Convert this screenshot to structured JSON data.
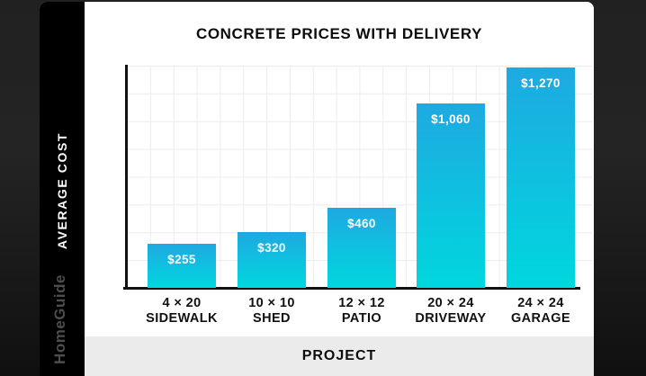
{
  "chart": {
    "title": "CONCRETE PRICES WITH DELIVERY",
    "y_axis_title": "AVERAGE COST",
    "x_axis_title": "PROJECT",
    "brand": "HomeGuide"
  },
  "colors": {
    "bar_gradient_top": "#1ea9e1",
    "bar_gradient_bottom": "#00d7de",
    "card_background": "#ffffff",
    "side_strip": "#000000",
    "bottom_strip": "#ebebeb",
    "grid_line": "#ececec",
    "axis": "#111111",
    "page_background": "#1c1c1c"
  },
  "chart_data": {
    "type": "bar",
    "title": "CONCRETE PRICES WITH DELIVERY",
    "xlabel": "PROJECT",
    "ylabel": "AVERAGE COST",
    "categories": [
      "4 × 20 SIDEWALK",
      "10 × 10 SHED",
      "12 × 12 PATIO",
      "20 × 24 DRIVEWAY",
      "24 × 24 GARAGE"
    ],
    "values": [
      255,
      320,
      460,
      1060,
      1270
    ],
    "ylim": [
      0,
      1280
    ],
    "grid": true,
    "legend": false,
    "bars": [
      {
        "size": "4 × 20",
        "name": "SIDEWALK",
        "value": 255,
        "label": "$255"
      },
      {
        "size": "10 × 10",
        "name": "SHED",
        "value": 320,
        "label": "$320"
      },
      {
        "size": "12 × 12",
        "name": "PATIO",
        "value": 460,
        "label": "$460"
      },
      {
        "size": "20 × 24",
        "name": "DRIVEWAY",
        "value": 1060,
        "label": "$1,060"
      },
      {
        "size": "24 × 24",
        "name": "GARAGE",
        "value": 1270,
        "label": "$1,270"
      }
    ]
  }
}
